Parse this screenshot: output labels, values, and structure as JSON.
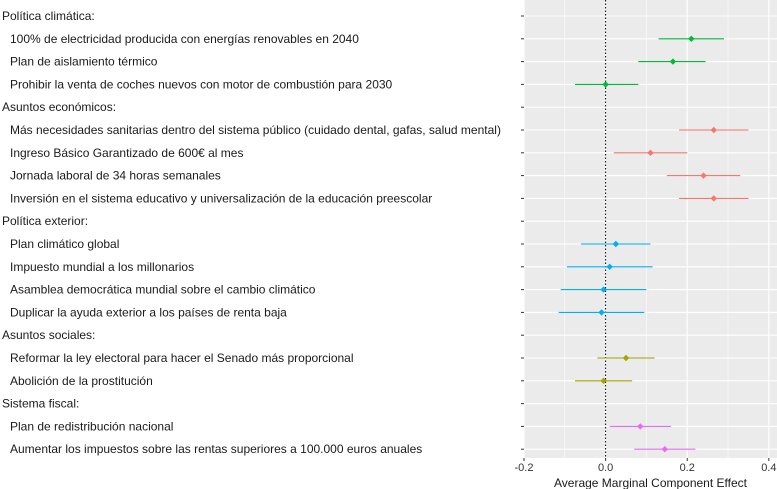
{
  "chart_data": {
    "type": "scatter",
    "subtype": "coefficient-plot-with-error-bars",
    "xlabel": "Average Marginal Component Effect",
    "xlim": [
      -0.2,
      0.42
    ],
    "x_ticks": [
      -0.2,
      0.0,
      0.2,
      0.4
    ],
    "x_tick_labels": [
      "-0.2",
      "0.0",
      "0.2",
      "0.4"
    ],
    "reference_line": 0,
    "grid": true,
    "background": "#ebebeb",
    "groups": [
      {
        "name": "Política climática:",
        "color": "#00ba38",
        "items": [
          {
            "label": "100% de electricidad producida con energías renovables en 2040",
            "estimate": 0.21,
            "lower": 0.13,
            "upper": 0.29
          },
          {
            "label": "Plan de aislamiento térmico",
            "estimate": 0.165,
            "lower": 0.08,
            "upper": 0.245
          },
          {
            "label": "Prohibir la venta de coches nuevos con motor de combustión para 2030",
            "estimate": 0.0,
            "lower": -0.075,
            "upper": 0.08
          }
        ]
      },
      {
        "name": "Asuntos económicos:",
        "color": "#f8766d",
        "items": [
          {
            "label": "Más necesidades sanitarias dentro del sistema público (cuidado dental, gafas, salud mental)",
            "estimate": 0.265,
            "lower": 0.18,
            "upper": 0.35
          },
          {
            "label": "Ingreso Básico Garantizado de 600€ al mes",
            "estimate": 0.11,
            "lower": 0.02,
            "upper": 0.2
          },
          {
            "label": "Jornada laboral de 34 horas semanales",
            "estimate": 0.24,
            "lower": 0.15,
            "upper": 0.33
          },
          {
            "label": "Inversión en el sistema educativo y universalización de la educación preescolar",
            "estimate": 0.265,
            "lower": 0.18,
            "upper": 0.35
          }
        ]
      },
      {
        "name": "Política exterior:",
        "color": "#00b0f6",
        "items": [
          {
            "label": "Plan climático global",
            "estimate": 0.025,
            "lower": -0.06,
            "upper": 0.11
          },
          {
            "label": "Impuesto mundial a los millonarios",
            "estimate": 0.01,
            "lower": -0.095,
            "upper": 0.115
          },
          {
            "label": "Asamblea democrática mundial sobre el cambio climático",
            "estimate": -0.005,
            "lower": -0.11,
            "upper": 0.1
          },
          {
            "label": "Duplicar la ayuda exterior a los países de renta baja",
            "estimate": -0.01,
            "lower": -0.115,
            "upper": 0.095
          }
        ]
      },
      {
        "name": "Asuntos sociales:",
        "color": "#a3a500",
        "items": [
          {
            "label": "Reformar la ley electoral para hacer el Senado más proporcional",
            "estimate": 0.05,
            "lower": -0.02,
            "upper": 0.12
          },
          {
            "label": "Abolición de la prostitución",
            "estimate": -0.005,
            "lower": -0.075,
            "upper": 0.065
          }
        ]
      },
      {
        "name": "Sistema fiscal:",
        "color": "#e76bf3",
        "items": [
          {
            "label": "Plan de redistribución nacional",
            "estimate": 0.085,
            "lower": 0.01,
            "upper": 0.16
          },
          {
            "label": "Aumentar los impuestos sobre las rentas superiores a 100.000 euros anuales",
            "estimate": 0.145,
            "lower": 0.07,
            "upper": 0.22
          }
        ]
      }
    ]
  }
}
